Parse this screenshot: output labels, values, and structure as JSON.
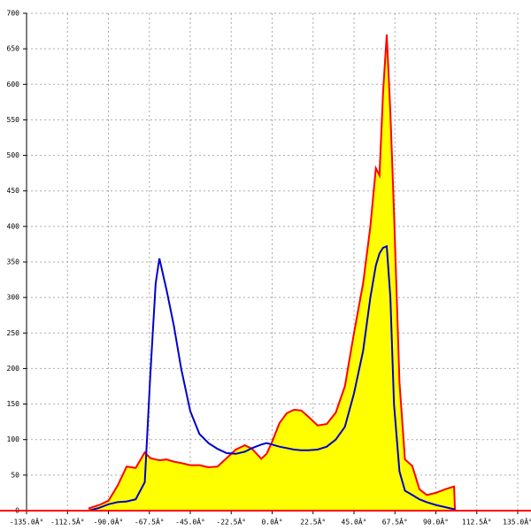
{
  "chart_data": {
    "type": "area",
    "x": [
      -101,
      -95,
      -90,
      -85,
      -80,
      -75,
      -70,
      -67,
      -64,
      -62,
      -58,
      -54,
      -50,
      -45,
      -40,
      -35,
      -30,
      -25,
      -20,
      -15,
      -11,
      -6,
      -3,
      0,
      4,
      8,
      12,
      16,
      20,
      25,
      30,
      35,
      40,
      45,
      50,
      54,
      57,
      59,
      61,
      63,
      65,
      67,
      70,
      73,
      77,
      81,
      85,
      90,
      95,
      100,
      100.5
    ],
    "series": [
      {
        "color": "#ff0000",
        "fill": "#ffff00",
        "values": [
          3,
          8,
          14,
          35,
          62,
          60,
          82,
          74,
          72,
          71,
          72,
          69,
          67,
          64,
          64,
          61,
          62,
          74,
          86,
          92,
          87,
          73,
          80,
          97,
          123,
          137,
          142,
          141,
          132,
          120,
          122,
          138,
          175,
          250,
          320,
          400,
          482,
          472,
          590,
          670,
          560,
          420,
          180,
          72,
          63,
          30,
          22,
          25,
          30,
          34,
          0
        ]
      },
      {
        "color": "#0000cc",
        "fill": null,
        "values": [
          0,
          4,
          9,
          12,
          13,
          16,
          40,
          190,
          320,
          355,
          310,
          260,
          200,
          140,
          108,
          95,
          87,
          81,
          80,
          83,
          88,
          93,
          95,
          93,
          90,
          88,
          86,
          85,
          85,
          86,
          90,
          100,
          118,
          165,
          225,
          300,
          345,
          362,
          370,
          372,
          300,
          150,
          55,
          28,
          22,
          16,
          12,
          8,
          5,
          2,
          0
        ]
      }
    ],
    "xlim": [
      -135,
      135
    ],
    "xticks": [
      {
        "value": -135,
        "label": "-135.0Â°"
      },
      {
        "value": -112.5,
        "label": "-112.5Â°"
      },
      {
        "value": -90,
        "label": "-90.0Â°"
      },
      {
        "value": -67.5,
        "label": "-67.5Â°"
      },
      {
        "value": -45,
        "label": "-45.0Â°"
      },
      {
        "value": -22.5,
        "label": "-22.5Â°"
      },
      {
        "value": 0,
        "label": "0.0Â°"
      },
      {
        "value": 22.5,
        "label": "22.5Â°"
      },
      {
        "value": 45,
        "label": "45.0Â°"
      },
      {
        "value": 67.5,
        "label": "67.5Â°"
      },
      {
        "value": 90,
        "label": "90.0Â°"
      },
      {
        "value": 112.5,
        "label": "112.5Â°"
      },
      {
        "value": 135,
        "label": "135.0Â°"
      }
    ],
    "ylim": [
      0,
      700
    ],
    "yticks": [
      0,
      50,
      100,
      150,
      200,
      250,
      300,
      350,
      400,
      450,
      500,
      550,
      600,
      650,
      700
    ],
    "grid": true
  }
}
